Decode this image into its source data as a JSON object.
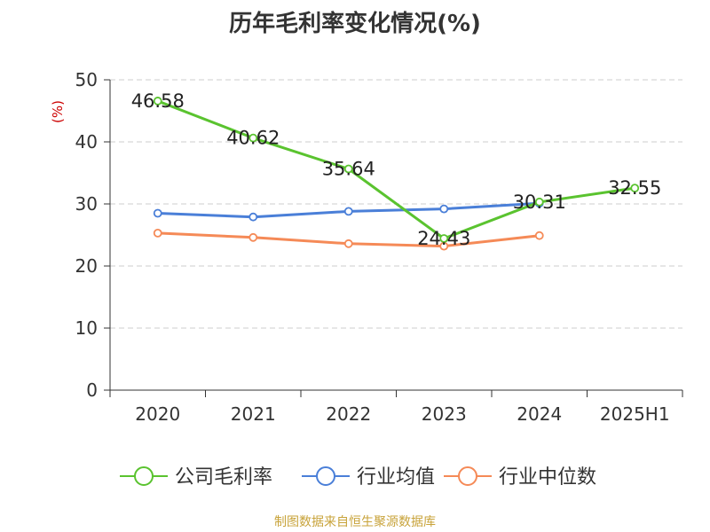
{
  "chart_data": {
    "type": "line",
    "title": "历年毛利率变化情况(%)",
    "ylabel": "(%)",
    "xlabel": "",
    "categories": [
      "2020",
      "2021",
      "2022",
      "2023",
      "2024",
      "2025H1"
    ],
    "ylim": [
      0,
      50
    ],
    "yticks": [
      0,
      10,
      20,
      30,
      40,
      50
    ],
    "grid": true,
    "legend_position": "bottom",
    "series": [
      {
        "name": "公司毛利率",
        "color": "#5ac32f",
        "values": [
          46.58,
          40.62,
          35.64,
          24.43,
          30.31,
          32.55
        ],
        "labels": [
          "46.58",
          "40.62",
          "35.64",
          "24.43",
          "30.31",
          "32.55"
        ]
      },
      {
        "name": "行业均值",
        "color": "#4a7fd8",
        "values": [
          28.5,
          27.9,
          28.8,
          29.2,
          30.1,
          null
        ]
      },
      {
        "name": "行业中位数",
        "color": "#f58a57",
        "values": [
          25.3,
          24.6,
          23.6,
          23.2,
          24.9,
          null
        ]
      }
    ]
  },
  "footer": {
    "source": "制图数据来自恒生聚源数据库"
  },
  "colors": {
    "axis": "#333333",
    "grid": "#cccccc",
    "ylabel": "#cc0000",
    "source": "#c8a33a"
  }
}
